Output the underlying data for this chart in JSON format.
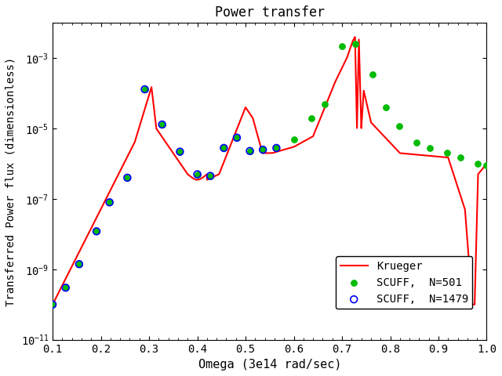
{
  "title": "Power transfer",
  "xlabel": "Omega (3e14 rad/sec)",
  "ylabel": "Transferred Power flux (dimensionless)",
  "xlim": [
    0.1,
    1.0
  ],
  "ylim_log": [
    -11,
    -2
  ],
  "line_color": "#ff0000",
  "dot_color_filled": "#00bb00",
  "dot_color_open": "#0000ff",
  "legend_entries": [
    "Krueger",
    "SCUFF,  N=501",
    "SCUFF,  N=1479"
  ],
  "background_color": "#ffffff",
  "font_family": "DejaVu Sans Mono",
  "scuff501_x": [
    0.1,
    0.127,
    0.155,
    0.191,
    0.218,
    0.255,
    0.291,
    0.327,
    0.364,
    0.4,
    0.427,
    0.455,
    0.482,
    0.509,
    0.536,
    0.564,
    0.6,
    0.636,
    0.664,
    0.7,
    0.727,
    0.764,
    0.791,
    0.818,
    0.855,
    0.882,
    0.918,
    0.945,
    0.982,
    1.0
  ],
  "scuff501_y": [
    1e-10,
    3e-10,
    1.4e-09,
    1.2e-08,
    8e-08,
    4e-07,
    0.00013,
    1.3e-05,
    2.2e-06,
    5e-07,
    4.5e-07,
    2.8e-06,
    5.5e-06,
    2.3e-06,
    2.5e-06,
    2.8e-06,
    5e-06,
    2e-05,
    5e-05,
    0.0022,
    0.0025,
    0.00035,
    4e-05,
    1.2e-05,
    4e-06,
    2.8e-06,
    2e-06,
    1.5e-06,
    1e-06,
    9e-07
  ],
  "scuff1479_x": [
    0.1,
    0.127,
    0.155,
    0.191,
    0.218,
    0.255,
    0.291,
    0.327,
    0.364,
    0.4,
    0.427,
    0.455,
    0.482,
    0.509,
    0.536,
    0.564
  ],
  "scuff1479_y": [
    1e-10,
    3e-10,
    1.4e-09,
    1.2e-08,
    8e-08,
    4e-07,
    0.00013,
    1.3e-05,
    2.2e-06,
    5e-07,
    4.5e-07,
    2.8e-06,
    5.5e-06,
    2.3e-06,
    2.5e-06,
    2.8e-06
  ]
}
